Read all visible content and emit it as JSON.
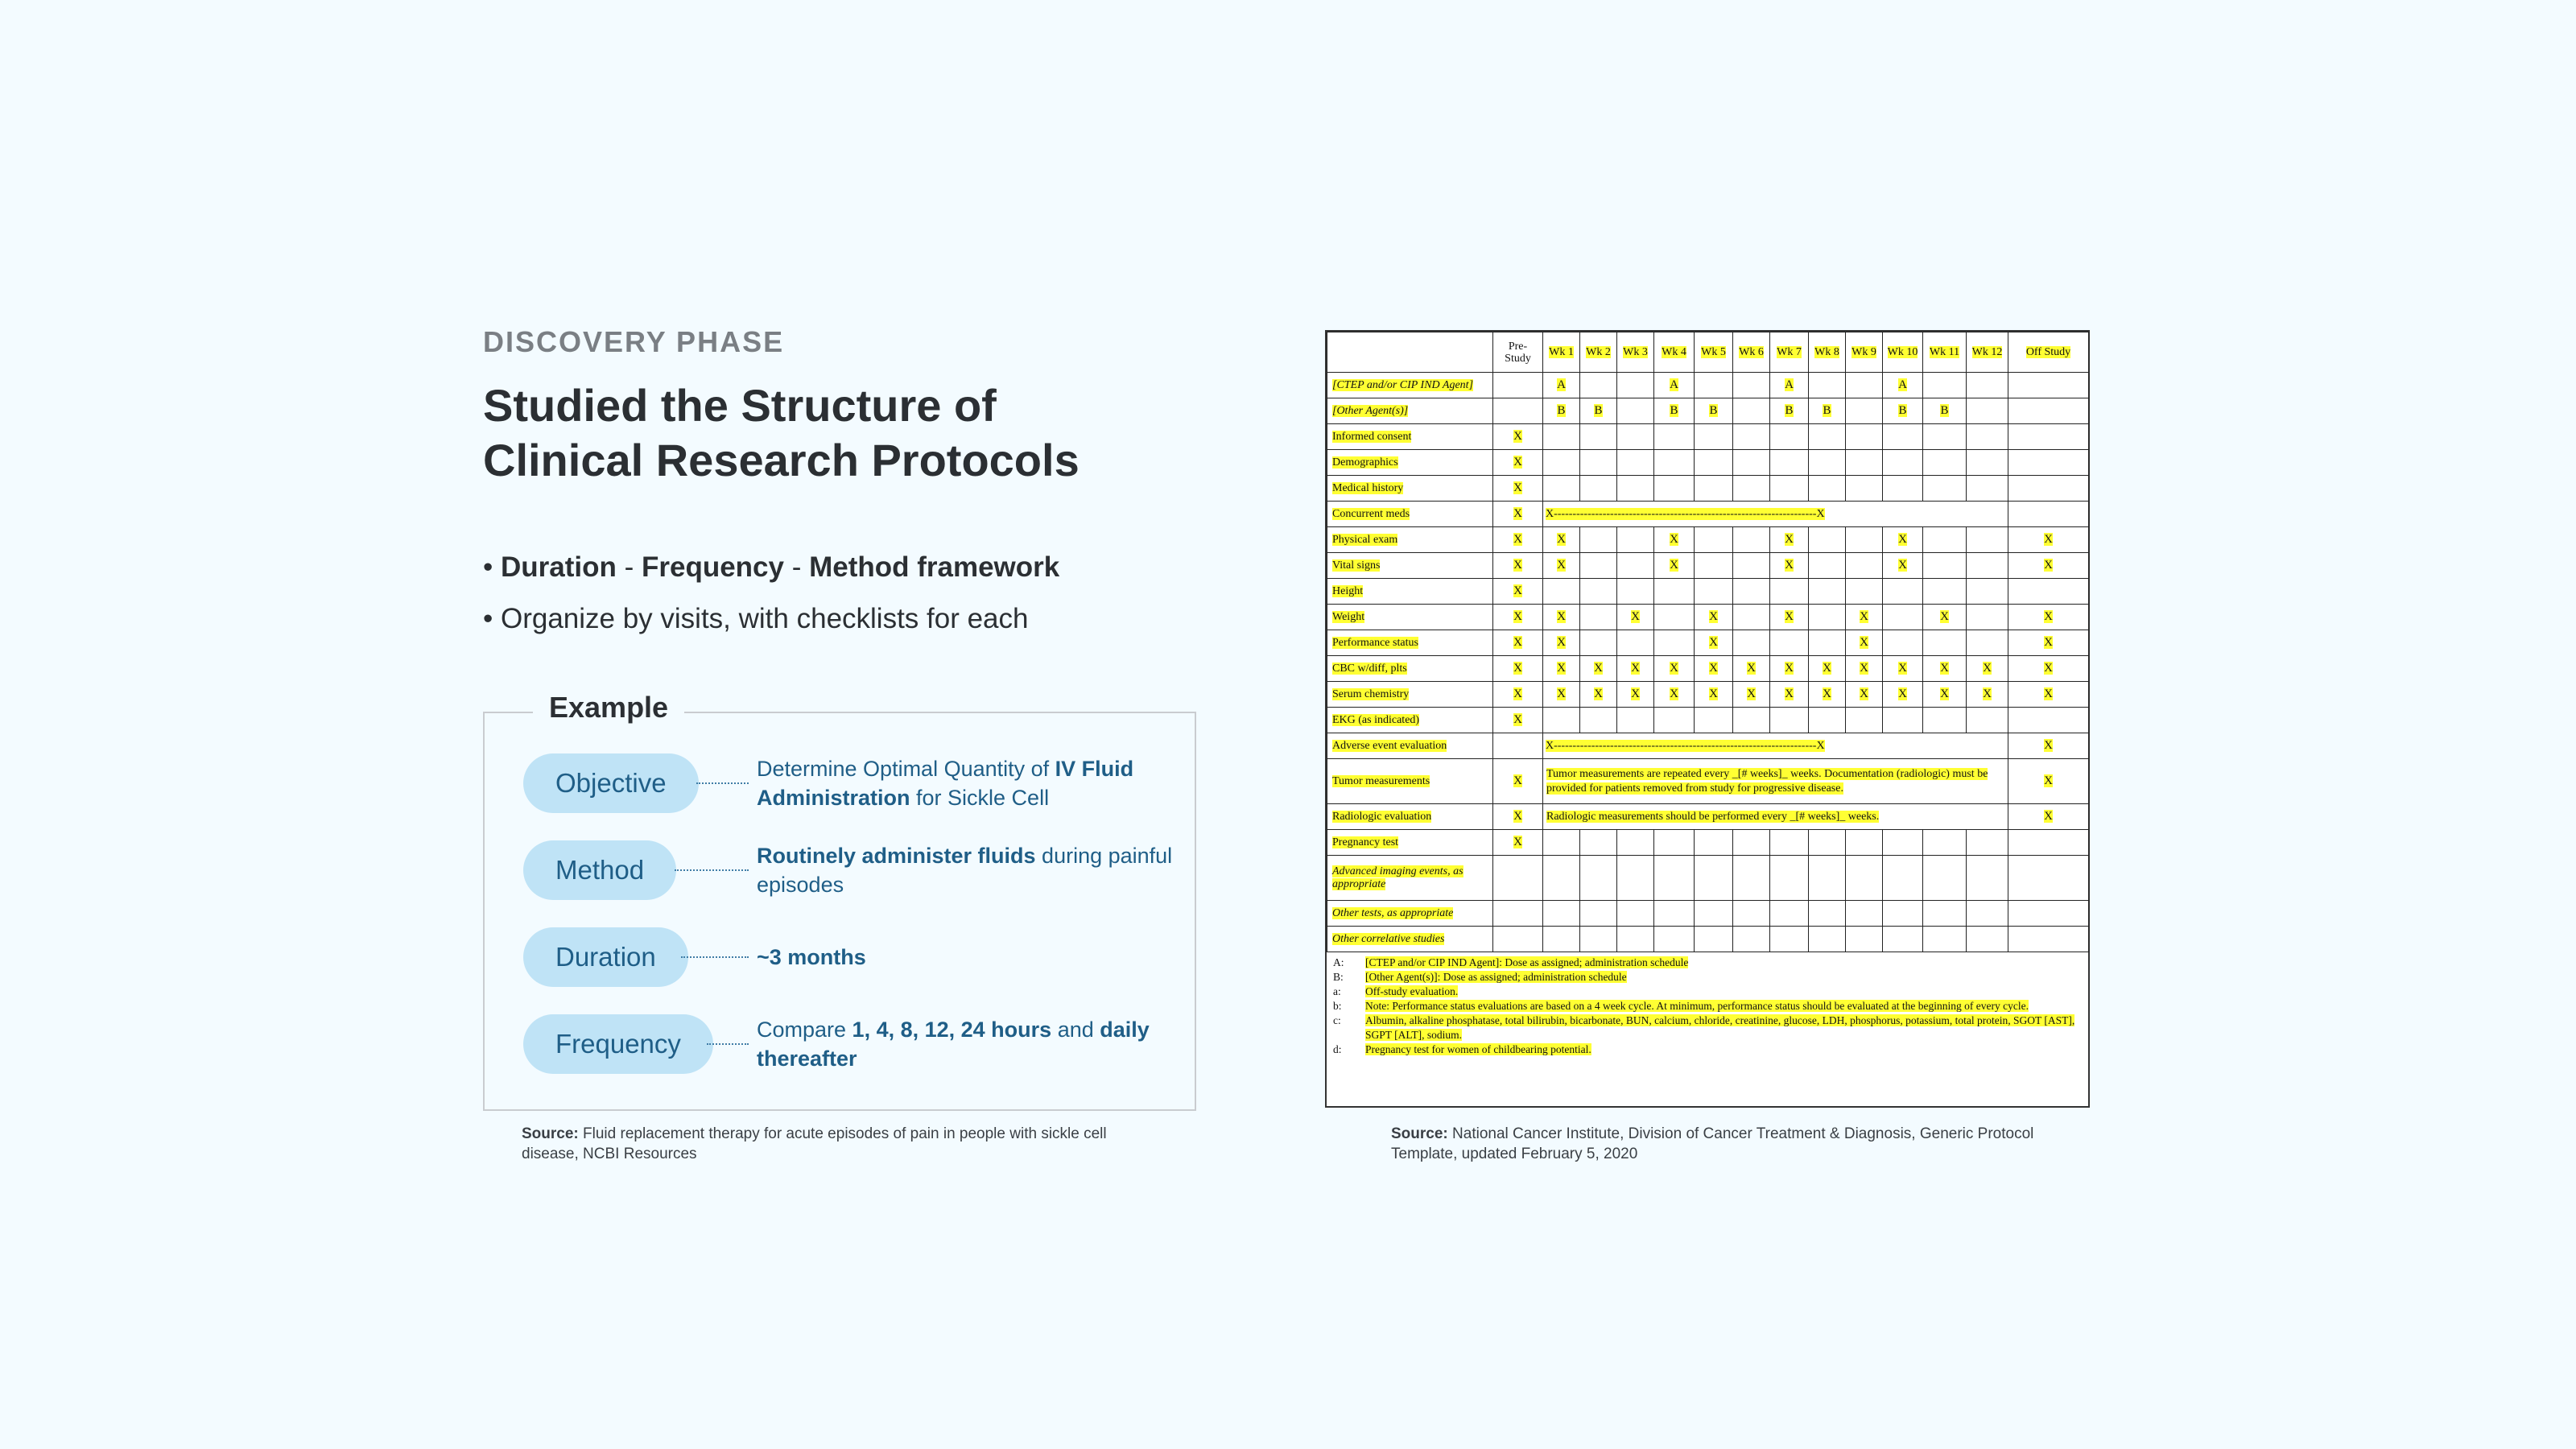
{
  "kicker": "DISCOVERY PHASE",
  "title_line1": "Studied the Structure of",
  "title_line2": "Clinical Research Protocols",
  "bullets": {
    "b1_dot": "• ",
    "b1_duration": "Duration",
    "b1_sep1": " - ",
    "b1_frequency": "Frequency",
    "b1_sep2": " - ",
    "b1_method": "Method framework",
    "b2": "• Organize by visits, with checklists for each"
  },
  "example": {
    "heading": "Example",
    "rows": [
      {
        "label": "Objective",
        "t1": "Determine Optimal Quantity of ",
        "b1": "IV Fluid Administration",
        "t2": " for Sickle Cell"
      },
      {
        "label": "Method",
        "b1": "Routinely administer fluids",
        "t1": " during painful episodes"
      },
      {
        "label": "Duration",
        "b1": "~3 months"
      },
      {
        "label": "Frequency",
        "t1": "Compare ",
        "b1": "1, 4, 8, 12, 24 hours",
        "t2": " and ",
        "b2": "daily thereafter"
      }
    ]
  },
  "source_left": {
    "label": "Source:",
    "text": " Fluid replacement therapy for acute episodes of pain in people with sickle cell disease, NCBI Resources"
  },
  "source_right": {
    "label": "Source:",
    "text": " National Cancer Institute, Division of Cancer Treatment & Diagnosis, Generic Protocol Template, updated February 5, 2020"
  },
  "schedule": {
    "columns": [
      "Pre-Study",
      "Wk 1",
      "Wk 2",
      "Wk 3",
      "Wk 4",
      "Wk 5",
      "Wk 6",
      "Wk 7",
      "Wk 8",
      "Wk 9",
      "Wk 10",
      "Wk 11",
      "Wk 12",
      "Off Study"
    ],
    "rows": [
      {
        "label": "[CTEP and/or CIP IND Agent]",
        "cells": [
          "",
          "A",
          "",
          "",
          "A",
          "",
          "",
          "A",
          "",
          "",
          "A",
          "",
          "",
          ""
        ]
      },
      {
        "label": "[Other Agent(s)]",
        "cells": [
          "",
          "B",
          "B",
          "",
          "B",
          "B",
          "",
          "B",
          "B",
          "",
          "B",
          "B",
          "",
          ""
        ]
      },
      {
        "label": "Informed consent",
        "cells": [
          "X",
          "",
          "",
          "",
          "",
          "",
          "",
          "",
          "",
          "",
          "",
          "",
          "",
          ""
        ]
      },
      {
        "label": "Demographics",
        "cells": [
          "X",
          "",
          "",
          "",
          "",
          "",
          "",
          "",
          "",
          "",
          "",
          "",
          "",
          ""
        ]
      },
      {
        "label": "Medical history",
        "cells": [
          "X",
          "",
          "",
          "",
          "",
          "",
          "",
          "",
          "",
          "",
          "",
          "",
          "",
          ""
        ]
      },
      {
        "label": "Concurrent meds",
        "cells": [
          "X",
          "",
          "",
          "",
          "",
          "",
          "",
          "",
          "",
          "",
          "",
          "",
          "",
          ""
        ],
        "span_text": "X----------------------------------------------------------------------X"
      },
      {
        "label": "Physical exam",
        "cells": [
          "X",
          "X",
          "",
          "",
          "X",
          "",
          "",
          "X",
          "",
          "",
          "X",
          "",
          "",
          "X"
        ]
      },
      {
        "label": "Vital signs",
        "cells": [
          "X",
          "X",
          "",
          "",
          "X",
          "",
          "",
          "X",
          "",
          "",
          "X",
          "",
          "",
          "X"
        ]
      },
      {
        "label": "Height",
        "cells": [
          "X",
          "",
          "",
          "",
          "",
          "",
          "",
          "",
          "",
          "",
          "",
          "",
          "",
          ""
        ]
      },
      {
        "label": "Weight",
        "cells": [
          "X",
          "X",
          "",
          "X",
          "",
          "X",
          "",
          "X",
          "",
          "X",
          "",
          "X",
          "",
          "X"
        ]
      },
      {
        "label": "Performance status",
        "cells": [
          "X",
          "X",
          "",
          "",
          "",
          "X",
          "",
          "",
          "",
          "X",
          "",
          "",
          "",
          "X"
        ]
      },
      {
        "label": "CBC w/diff, plts",
        "cells": [
          "X",
          "X",
          "X",
          "X",
          "X",
          "X",
          "X",
          "X",
          "X",
          "X",
          "X",
          "X",
          "X",
          "X"
        ]
      },
      {
        "label": "Serum chemistry",
        "cells": [
          "X",
          "X",
          "X",
          "X",
          "X",
          "X",
          "X",
          "X",
          "X",
          "X",
          "X",
          "X",
          "X",
          "X"
        ]
      },
      {
        "label": "EKG (as indicated)",
        "cells": [
          "X",
          "",
          "",
          "",
          "",
          "",
          "",
          "",
          "",
          "",
          "",
          "",
          "",
          ""
        ]
      },
      {
        "label": "Adverse event evaluation",
        "cells": [
          "",
          "",
          "",
          "",
          "",
          "",
          "",
          "",
          "",
          "",
          "",
          "",
          "",
          "X"
        ],
        "span_text": "X----------------------------------------------------------------------X"
      },
      {
        "label": "Tumor measurements",
        "cells": [
          "X",
          "",
          "",
          "",
          "",
          "",
          "",
          "",
          "",
          "",
          "",
          "",
          "",
          "X"
        ],
        "span_text": "Tumor measurements are repeated every _[# weeks]_ weeks. Documentation (radiologic) must be provided for patients removed from study for progressive disease."
      },
      {
        "label": "Radiologic evaluation",
        "cells": [
          "X",
          "",
          "",
          "",
          "",
          "",
          "",
          "",
          "",
          "",
          "",
          "",
          "",
          "X"
        ],
        "span_text": "Radiologic measurements should be performed every _[# weeks]_ weeks."
      },
      {
        "label": "Pregnancy test",
        "cells": [
          "X",
          "",
          "",
          "",
          "",
          "",
          "",
          "",
          "",
          "",
          "",
          "",
          "",
          ""
        ]
      },
      {
        "label": "Advanced imaging events, as appropriate",
        "cells": [
          "",
          "",
          "",
          "",
          "",
          "",
          "",
          "",
          "",
          "",
          "",
          "",
          "",
          ""
        ]
      },
      {
        "label": "Other tests, as appropriate",
        "cells": [
          "",
          "",
          "",
          "",
          "",
          "",
          "",
          "",
          "",
          "",
          "",
          "",
          "",
          ""
        ]
      },
      {
        "label": "Other correlative studies",
        "cells": [
          "",
          "",
          "",
          "",
          "",
          "",
          "",
          "",
          "",
          "",
          "",
          "",
          "",
          ""
        ]
      }
    ],
    "footnotes": [
      {
        "key": "A:",
        "text": "[CTEP and/or CIP IND Agent]: Dose as assigned; administration schedule"
      },
      {
        "key": "B:",
        "text": "[Other Agent(s)]: Dose as assigned; administration schedule"
      },
      {
        "key": "a:",
        "text": "Off-study evaluation."
      },
      {
        "key": "b:",
        "text": "Note: Performance status evaluations are based on a 4 week cycle. At minimum, performance status should be evaluated at the beginning of every cycle."
      },
      {
        "key": "c:",
        "text": "Albumin, alkaline phosphatase, total bilirubin, bicarbonate, BUN, calcium, chloride, creatinine, glucose, LDH, phosphorus, potassium, total protein, SGOT [AST], SGPT [ALT], sodium."
      },
      {
        "key": "d:",
        "text": "Pregnancy test for women of childbearing potential."
      }
    ]
  }
}
